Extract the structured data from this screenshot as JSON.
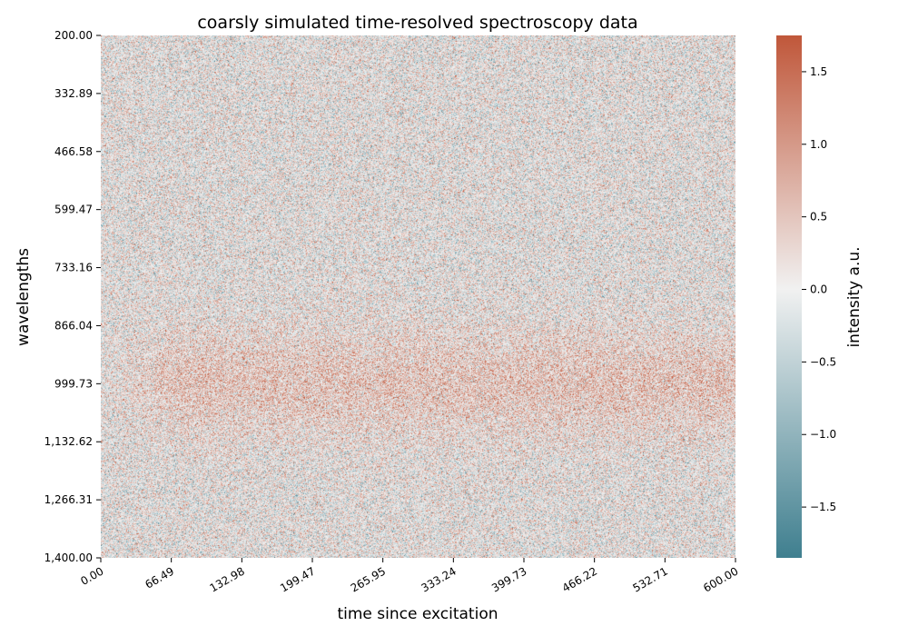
{
  "chart_data": {
    "type": "heatmap",
    "title": "coarsly simulated time-resolved spectroscopy data",
    "xlabel": "time since excitation",
    "ylabel": "wavelengths",
    "colorbar_label": "intensity a.u.",
    "x_range": [
      0,
      600
    ],
    "y_range": [
      200,
      1400
    ],
    "y_inverted": true,
    "x_ticks": [
      "0.00",
      "66.49",
      "132.98",
      "199.47",
      "265.95",
      "333.24",
      "399.73",
      "466.22",
      "532.71",
      "600.00"
    ],
    "y_ticks": [
      "200.00",
      "332.89",
      "466.58",
      "599.47",
      "733.16",
      "866.04",
      "999.73",
      "1,132.62",
      "1,266.31",
      "1,400.00"
    ],
    "colorbar_range": [
      -1.85,
      1.75
    ],
    "colorbar_ticks": [
      -1.5,
      -1.0,
      -0.5,
      0.0,
      0.5,
      1.0,
      1.5
    ],
    "colorbar_tick_labels": [
      "−1.5",
      "−1.0",
      "−0.5",
      "0.0",
      "0.5",
      "1.0",
      "1.5"
    ],
    "colormap": {
      "low": "#3f7f8f",
      "mid": "#f1f1f1",
      "high": "#c0573a"
    },
    "signal": {
      "center_wavelength": 1000,
      "width_wavelength": 85,
      "peak_intensity": 0.45,
      "noise_std": 0.55
    },
    "grid": false
  }
}
